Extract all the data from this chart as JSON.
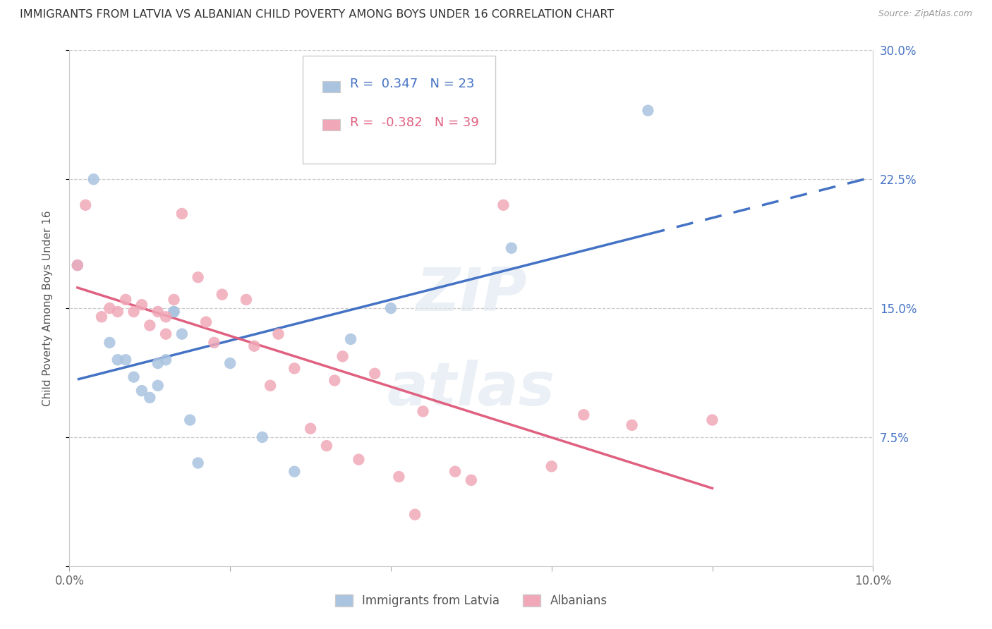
{
  "title": "IMMIGRANTS FROM LATVIA VS ALBANIAN CHILD POVERTY AMONG BOYS UNDER 16 CORRELATION CHART",
  "source": "Source: ZipAtlas.com",
  "ylabel": "Child Poverty Among Boys Under 16",
  "x_min": 0.0,
  "x_max": 0.1,
  "y_min": 0.0,
  "y_max": 0.3,
  "x_ticks": [
    0.0,
    0.02,
    0.04,
    0.06,
    0.08,
    0.1
  ],
  "x_tick_labels": [
    "0.0%",
    "",
    "",
    "",
    "",
    "10.0%"
  ],
  "y_ticks": [
    0.0,
    0.075,
    0.15,
    0.225,
    0.3
  ],
  "y_tick_labels_right": [
    "",
    "7.5%",
    "15.0%",
    "22.5%",
    "30.0%"
  ],
  "grid_color": "#cccccc",
  "background_color": "#ffffff",
  "latvia_color": "#aac4e0",
  "albanian_color": "#f0a8b8",
  "latvia_R": "0.347",
  "latvia_N": "23",
  "albanian_R": "-0.382",
  "albanian_N": "39",
  "latvia_line_color": "#4472c4",
  "albanian_line_color": "#e06080",
  "tick_color_right": "#4472c4",
  "latvia_x": [
    0.001,
    0.003,
    0.005,
    0.006,
    0.007,
    0.008,
    0.009,
    0.01,
    0.011,
    0.011,
    0.012,
    0.013,
    0.013,
    0.014,
    0.015,
    0.016,
    0.02,
    0.024,
    0.028,
    0.035,
    0.04,
    0.055,
    0.072
  ],
  "latvia_y": [
    0.175,
    0.225,
    0.13,
    0.12,
    0.12,
    0.11,
    0.102,
    0.098,
    0.118,
    0.105,
    0.12,
    0.148,
    0.148,
    0.135,
    0.085,
    0.06,
    0.118,
    0.075,
    0.055,
    0.132,
    0.15,
    0.185,
    0.265
  ],
  "albanian_x": [
    0.001,
    0.002,
    0.004,
    0.005,
    0.006,
    0.007,
    0.008,
    0.009,
    0.01,
    0.011,
    0.012,
    0.012,
    0.013,
    0.014,
    0.016,
    0.017,
    0.018,
    0.019,
    0.022,
    0.023,
    0.025,
    0.026,
    0.028,
    0.03,
    0.032,
    0.033,
    0.034,
    0.036,
    0.038,
    0.041,
    0.043,
    0.044,
    0.048,
    0.05,
    0.054,
    0.06,
    0.064,
    0.07,
    0.08
  ],
  "albanian_y": [
    0.175,
    0.21,
    0.145,
    0.15,
    0.148,
    0.155,
    0.148,
    0.152,
    0.14,
    0.148,
    0.145,
    0.135,
    0.155,
    0.205,
    0.168,
    0.142,
    0.13,
    0.158,
    0.155,
    0.128,
    0.105,
    0.135,
    0.115,
    0.08,
    0.07,
    0.108,
    0.122,
    0.062,
    0.112,
    0.052,
    0.03,
    0.09,
    0.055,
    0.05,
    0.21,
    0.058,
    0.088,
    0.082,
    0.085
  ]
}
